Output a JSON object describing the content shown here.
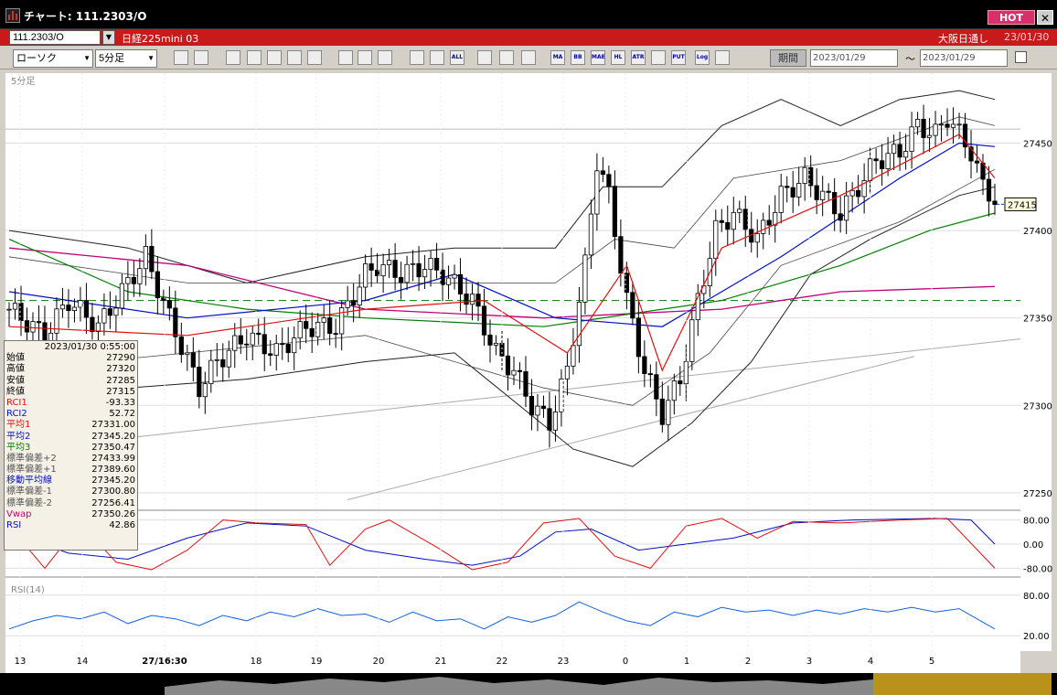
{
  "window": {
    "title": "チャート: 111.2303/O",
    "hot_label": "HOT",
    "close_label": "✕"
  },
  "infobar": {
    "symbol": "111.2303/O",
    "instrument": "日経225mini 03",
    "exchange": "大阪日通し",
    "date": "23/01/30"
  },
  "toolbar": {
    "chart_type": "ローソク",
    "interval": "5分足",
    "period_label": "期間",
    "date_from": "2023/01/29",
    "date_to": "2023/01/29",
    "tilde": "〜",
    "buttons": [
      "",
      "",
      "",
      "",
      "",
      "",
      "",
      "",
      "",
      "",
      "",
      "",
      "ALL",
      "",
      "",
      "",
      "MA",
      "BB",
      "MAE",
      "HL",
      "ATR",
      "",
      "PUT",
      "Log",
      ""
    ]
  },
  "colors": {
    "bg": "#000000",
    "candle_up": "#ffffff",
    "candle_down": "#000000",
    "avg1": "#e01010",
    "avg2": "#0010c8",
    "avg3": "#008000",
    "vwap": "#c0007a",
    "band": "#202020",
    "rci1": "#e01010",
    "rci2": "#0010c8",
    "rsi": "#1060e0"
  },
  "chart_data": {
    "type": "candlestick",
    "interval_label": "5分足",
    "yticks": [
      27250,
      27300,
      27350,
      27400,
      27450
    ],
    "ylim": [
      27240,
      27490
    ],
    "current_price": 27415,
    "reference_line": 27360,
    "xticks": [
      "13",
      "14",
      "27/16:30",
      "18",
      "19",
      "20",
      "21",
      "22",
      "23",
      "0",
      "1",
      "2",
      "3",
      "4",
      "5"
    ],
    "close_path": [
      [
        0,
        27355
      ],
      [
        6,
        27340
      ],
      [
        10,
        27360
      ],
      [
        15,
        27345
      ],
      [
        20,
        27370
      ],
      [
        23,
        27385
      ],
      [
        27,
        27350
      ],
      [
        32,
        27310
      ],
      [
        35,
        27325
      ],
      [
        40,
        27340
      ],
      [
        45,
        27330
      ],
      [
        50,
        27345
      ],
      [
        55,
        27345
      ],
      [
        60,
        27375
      ],
      [
        62,
        27380
      ],
      [
        66,
        27375
      ],
      [
        70,
        27380
      ],
      [
        73,
        27375
      ],
      [
        78,
        27360
      ],
      [
        82,
        27330
      ],
      [
        85,
        27320
      ],
      [
        88,
        27300
      ],
      [
        91,
        27290
      ],
      [
        94,
        27320
      ],
      [
        97,
        27380
      ],
      [
        99,
        27440
      ],
      [
        101,
        27420
      ],
      [
        104,
        27360
      ],
      [
        107,
        27320
      ],
      [
        110,
        27295
      ],
      [
        113,
        27315
      ],
      [
        116,
        27360
      ],
      [
        119,
        27400
      ],
      [
        122,
        27410
      ],
      [
        126,
        27395
      ],
      [
        130,
        27420
      ],
      [
        134,
        27430
      ],
      [
        137,
        27420
      ],
      [
        140,
        27410
      ],
      [
        143,
        27425
      ],
      [
        146,
        27440
      ],
      [
        150,
        27445
      ],
      [
        153,
        27460
      ],
      [
        156,
        27455
      ],
      [
        158,
        27465
      ],
      [
        162,
        27445
      ],
      [
        164,
        27425
      ],
      [
        166,
        27418
      ]
    ],
    "avg_path": [
      [
        0,
        27345
      ],
      [
        30,
        27340
      ],
      [
        60,
        27355
      ],
      [
        80,
        27360
      ],
      [
        94,
        27330
      ],
      [
        104,
        27380
      ],
      [
        110,
        27320
      ],
      [
        120,
        27390
      ],
      [
        140,
        27420
      ],
      [
        160,
        27455
      ],
      [
        166,
        27430
      ]
    ],
    "ma2_path": [
      [
        0,
        27365
      ],
      [
        30,
        27350
      ],
      [
        60,
        27360
      ],
      [
        75,
        27375
      ],
      [
        92,
        27350
      ],
      [
        110,
        27345
      ],
      [
        130,
        27385
      ],
      [
        150,
        27430
      ],
      [
        160,
        27450
      ],
      [
        166,
        27448
      ]
    ],
    "ma3_path": [
      [
        0,
        27395
      ],
      [
        20,
        27365
      ],
      [
        40,
        27355
      ],
      [
        60,
        27350
      ],
      [
        90,
        27345
      ],
      [
        120,
        27360
      ],
      [
        140,
        27380
      ],
      [
        155,
        27400
      ],
      [
        166,
        27410
      ]
    ],
    "vwap_path": [
      [
        0,
        27390
      ],
      [
        30,
        27380
      ],
      [
        60,
        27355
      ],
      [
        90,
        27350
      ],
      [
        120,
        27355
      ],
      [
        140,
        27365
      ],
      [
        166,
        27368
      ]
    ],
    "upper_band": [
      [
        0,
        27400
      ],
      [
        20,
        27390
      ],
      [
        40,
        27370
      ],
      [
        60,
        27385
      ],
      [
        75,
        27390
      ],
      [
        92,
        27390
      ],
      [
        100,
        27425
      ],
      [
        110,
        27425
      ],
      [
        120,
        27460
      ],
      [
        130,
        27475
      ],
      [
        140,
        27460
      ],
      [
        150,
        27475
      ],
      [
        160,
        27480
      ],
      [
        166,
        27475
      ]
    ],
    "lower_band": [
      [
        0,
        27305
      ],
      [
        20,
        27310
      ],
      [
        40,
        27315
      ],
      [
        60,
        27325
      ],
      [
        75,
        27330
      ],
      [
        95,
        27275
      ],
      [
        105,
        27265
      ],
      [
        115,
        27290
      ],
      [
        125,
        27325
      ],
      [
        135,
        27375
      ],
      [
        145,
        27395
      ],
      [
        160,
        27420
      ],
      [
        166,
        27425
      ]
    ],
    "upper_band2": [
      [
        0,
        27385
      ],
      [
        30,
        27370
      ],
      [
        60,
        27370
      ],
      [
        92,
        27370
      ],
      [
        102,
        27395
      ],
      [
        112,
        27390
      ],
      [
        122,
        27430
      ],
      [
        140,
        27440
      ],
      [
        160,
        27465
      ],
      [
        166,
        27460
      ]
    ],
    "lower_band2": [
      [
        0,
        27320
      ],
      [
        30,
        27330
      ],
      [
        60,
        27340
      ],
      [
        90,
        27310
      ],
      [
        105,
        27300
      ],
      [
        118,
        27330
      ],
      [
        130,
        27380
      ],
      [
        150,
        27405
      ],
      [
        166,
        27435
      ]
    ],
    "ohlc_panel": [
      {
        "label": "始値",
        "value": "27290",
        "color": "#000"
      },
      {
        "label": "高値",
        "value": "27320",
        "color": "#000"
      },
      {
        "label": "安値",
        "value": "27285",
        "color": "#000"
      },
      {
        "label": "終値",
        "value": "27315",
        "color": "#000"
      },
      {
        "label": "RCI1",
        "value": "-93.33",
        "color": "#e01010"
      },
      {
        "label": "RCI2",
        "value": "52.72",
        "color": "#0010c8"
      },
      {
        "label": "平均1",
        "value": "27331.00",
        "color": "#e01010"
      },
      {
        "label": "平均2",
        "value": "27345.20",
        "color": "#0010c8"
      },
      {
        "label": "平均3",
        "value": "27350.47",
        "color": "#008000"
      },
      {
        "label": "標準偏差+2",
        "value": "27433.99",
        "color": "#555"
      },
      {
        "label": "標準偏差+1",
        "value": "27389.60",
        "color": "#555"
      },
      {
        "label": "移動平均線",
        "value": "27345.20",
        "color": "#0010c8"
      },
      {
        "label": "標準偏差-1",
        "value": "27300.80",
        "color": "#555"
      },
      {
        "label": "標準偏差-2",
        "value": "27256.41",
        "color": "#555"
      },
      {
        "label": "Vwap",
        "value": "27350.26",
        "color": "#c0007a"
      },
      {
        "label": "RSI",
        "value": "42.86",
        "color": "#0010c8"
      }
    ],
    "panel_time": "2023/01/30 0:55:00",
    "rci": {
      "yticks": [
        "80.00",
        "0.00",
        "-80.00"
      ],
      "rci1": [
        [
          0,
          60
        ],
        [
          6,
          -80
        ],
        [
          12,
          70
        ],
        [
          18,
          -60
        ],
        [
          24,
          -85
        ],
        [
          30,
          -20
        ],
        [
          36,
          80
        ],
        [
          42,
          70
        ],
        [
          50,
          65
        ],
        [
          54,
          -70
        ],
        [
          60,
          50
        ],
        [
          64,
          80
        ],
        [
          72,
          -10
        ],
        [
          78,
          -85
        ],
        [
          84,
          -60
        ],
        [
          90,
          70
        ],
        [
          96,
          85
        ],
        [
          102,
          -40
        ],
        [
          108,
          -80
        ],
        [
          114,
          60
        ],
        [
          120,
          85
        ],
        [
          126,
          20
        ],
        [
          132,
          75
        ],
        [
          140,
          70
        ],
        [
          150,
          80
        ],
        [
          158,
          85
        ],
        [
          166,
          -80
        ]
      ],
      "rci2": [
        [
          0,
          40
        ],
        [
          10,
          -30
        ],
        [
          20,
          -50
        ],
        [
          30,
          20
        ],
        [
          40,
          70
        ],
        [
          50,
          60
        ],
        [
          60,
          -20
        ],
        [
          70,
          -50
        ],
        [
          78,
          -70
        ],
        [
          86,
          -40
        ],
        [
          92,
          40
        ],
        [
          98,
          50
        ],
        [
          106,
          -20
        ],
        [
          114,
          0
        ],
        [
          122,
          20
        ],
        [
          132,
          70
        ],
        [
          142,
          80
        ],
        [
          156,
          85
        ],
        [
          162,
          80
        ],
        [
          166,
          0
        ]
      ]
    },
    "rsi": {
      "panel_label": "RSI(14)",
      "yticks": [
        "80.00",
        "20.00"
      ],
      "values": [
        [
          0,
          30
        ],
        [
          4,
          42
        ],
        [
          8,
          50
        ],
        [
          12,
          45
        ],
        [
          16,
          55
        ],
        [
          20,
          38
        ],
        [
          24,
          50
        ],
        [
          28,
          45
        ],
        [
          32,
          35
        ],
        [
          36,
          50
        ],
        [
          40,
          42
        ],
        [
          44,
          55
        ],
        [
          48,
          48
        ],
        [
          52,
          60
        ],
        [
          56,
          50
        ],
        [
          60,
          52
        ],
        [
          64,
          40
        ],
        [
          68,
          55
        ],
        [
          72,
          42
        ],
        [
          76,
          45
        ],
        [
          80,
          30
        ],
        [
          84,
          48
        ],
        [
          88,
          40
        ],
        [
          92,
          50
        ],
        [
          96,
          70
        ],
        [
          100,
          55
        ],
        [
          104,
          42
        ],
        [
          108,
          35
        ],
        [
          112,
          55
        ],
        [
          116,
          48
        ],
        [
          120,
          62
        ],
        [
          124,
          55
        ],
        [
          128,
          58
        ],
        [
          132,
          50
        ],
        [
          136,
          58
        ],
        [
          140,
          52
        ],
        [
          144,
          60
        ],
        [
          148,
          55
        ],
        [
          152,
          62
        ],
        [
          156,
          55
        ],
        [
          160,
          60
        ],
        [
          164,
          40
        ],
        [
          166,
          30
        ]
      ]
    }
  }
}
